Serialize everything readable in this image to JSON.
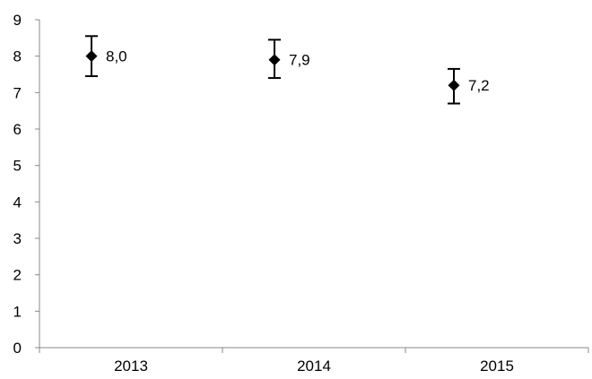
{
  "chart_data": {
    "type": "scatter",
    "categories": [
      "2013",
      "2014",
      "2015"
    ],
    "series": [
      {
        "values": [
          8.0,
          7.9,
          7.2
        ],
        "error_low": [
          7.45,
          7.4,
          6.7
        ],
        "error_high": [
          8.55,
          8.45,
          7.65
        ],
        "data_labels": [
          "8,0",
          "7,9",
          "7,2"
        ],
        "marker": "diamond",
        "color": "#000000"
      }
    ],
    "y_ticks": [
      "0",
      "1",
      "2",
      "3",
      "4",
      "5",
      "6",
      "7",
      "8",
      "9"
    ],
    "ylim": [
      0,
      9
    ],
    "grid": false,
    "legend": "none"
  }
}
